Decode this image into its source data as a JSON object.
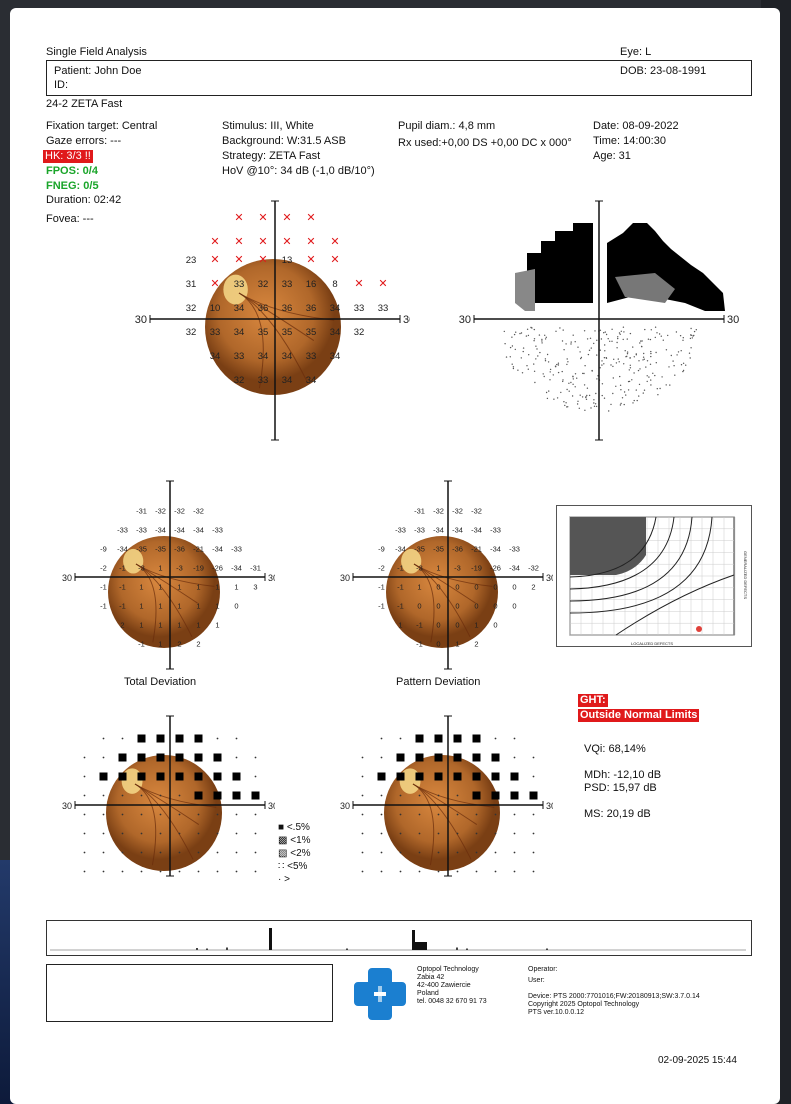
{
  "header": {
    "title": "Single Field Analysis",
    "eye": "Eye: L",
    "patient": "Patient: John Doe",
    "id": "ID:",
    "dob": "DOB: 23-08-1991",
    "test": "24-2 ZETA Fast"
  },
  "info": {
    "fixation": "Fixation target: Central",
    "gaze": "Gaze errors: ---",
    "hk": "HK: 3/3 !!",
    "fpos": "FPOS: 0/4",
    "fneg": "FNEG: 0/5",
    "duration": "Duration: 02:42",
    "fovea": "Fovea: ---",
    "stimulus": "Stimulus: III, White",
    "background": "Background: W:31.5 ASB",
    "strategy": "Strategy: ZETA Fast",
    "hov": "HoV @10°: 34 dB (-1,0 dB/10°)",
    "pupil": "Pupil diam.: 4,8 mm",
    "rx": "Rx used:+0,00 DS +0,00 DC x 000°",
    "date": "Date: 08-09-2022",
    "time": "Time: 14:00:30",
    "age": "Age: 31"
  },
  "axis": {
    "left": "30",
    "right": "30"
  },
  "sensitivity": {
    "rows": [
      {
        "y": -3,
        "cells": [
          [
            -4,
            "23"
          ],
          [
            -3,
            "x"
          ],
          [
            -2,
            "x"
          ],
          [
            -1,
            "x"
          ],
          [
            1,
            "13"
          ],
          [
            2,
            "x"
          ],
          [
            3,
            "x"
          ]
        ]
      },
      {
        "y": -2,
        "cells": [
          [
            -4,
            "31"
          ],
          [
            -3,
            "x"
          ],
          [
            -2,
            "33"
          ],
          [
            -1,
            "32"
          ],
          [
            1,
            "33"
          ],
          [
            2,
            "16"
          ],
          [
            3,
            "8"
          ],
          [
            4,
            "x"
          ],
          [
            5,
            "x"
          ]
        ]
      },
      {
        "y": -1,
        "cells": [
          [
            -4,
            "32"
          ],
          [
            -3,
            "10"
          ],
          [
            -2,
            "34"
          ],
          [
            -1,
            "36"
          ],
          [
            1,
            "36"
          ],
          [
            2,
            "36"
          ],
          [
            3,
            "34"
          ],
          [
            4,
            "33"
          ],
          [
            5,
            "33"
          ]
        ]
      },
      {
        "y": 0,
        "cells": [
          [
            -4,
            "32"
          ],
          [
            -3,
            "33"
          ],
          [
            -2,
            "34"
          ],
          [
            -1,
            "35"
          ],
          [
            1,
            "35"
          ],
          [
            2,
            "35"
          ],
          [
            3,
            "34"
          ],
          [
            4,
            "32"
          ]
        ]
      },
      {
        "y": 1,
        "cells": [
          [
            -3,
            "34"
          ],
          [
            -2,
            "33"
          ],
          [
            -1,
            "34"
          ],
          [
            1,
            "34"
          ],
          [
            2,
            "33"
          ],
          [
            3,
            "34"
          ]
        ]
      },
      {
        "y": 2,
        "cells": [
          [
            -2,
            "32"
          ],
          [
            -1,
            "33"
          ],
          [
            1,
            "34"
          ],
          [
            2,
            "34"
          ]
        ]
      }
    ],
    "top_marks": [
      [
        -2,
        -5
      ],
      [
        -1,
        -5
      ],
      [
        1,
        -5
      ],
      [
        2,
        -5
      ],
      [
        -3,
        -4
      ],
      [
        -2,
        -4
      ],
      [
        -1,
        -4
      ],
      [
        1,
        -4
      ],
      [
        2,
        -4
      ],
      [
        3,
        -4
      ]
    ]
  },
  "total_deviation": {
    "label": "Total Deviation",
    "rows": [
      {
        "y": -4,
        "cells": [
          [
            -2,
            "-31"
          ],
          [
            -1,
            "-32"
          ],
          [
            1,
            "-32"
          ],
          [
            2,
            "-32"
          ]
        ]
      },
      {
        "y": -3,
        "cells": [
          [
            -3,
            "-33"
          ],
          [
            -2,
            "-33"
          ],
          [
            -1,
            "-34"
          ],
          [
            1,
            "-34"
          ],
          [
            2,
            "-34"
          ],
          [
            3,
            "-33"
          ]
        ]
      },
      {
        "y": -2,
        "cells": [
          [
            -4,
            "-9"
          ],
          [
            -3,
            "-34"
          ],
          [
            -2,
            "-35"
          ],
          [
            -1,
            "-35"
          ],
          [
            1,
            "-36"
          ],
          [
            2,
            "-21"
          ],
          [
            3,
            "-34"
          ],
          [
            4,
            "-33"
          ]
        ]
      },
      {
        "y": -1,
        "cells": [
          [
            -4,
            "-2"
          ],
          [
            -3,
            "-1"
          ],
          [
            -2,
            "-3"
          ],
          [
            -1,
            "1"
          ],
          [
            1,
            "-3"
          ],
          [
            2,
            "-19"
          ],
          [
            3,
            "-26"
          ],
          [
            4,
            "-34"
          ],
          [
            5,
            "-31"
          ]
        ]
      },
      {
        "y": 0,
        "cells": [
          [
            -4,
            "-1"
          ],
          [
            -3,
            "-1"
          ],
          [
            -2,
            "1"
          ],
          [
            -1,
            "1"
          ],
          [
            1,
            "1"
          ],
          [
            2,
            "1"
          ],
          [
            3,
            "1"
          ],
          [
            4,
            "1"
          ],
          [
            5,
            "3"
          ]
        ]
      },
      {
        "y": 1,
        "cells": [
          [
            -4,
            "-1"
          ],
          [
            -3,
            "-1"
          ],
          [
            -2,
            "1"
          ],
          [
            -1,
            "1"
          ],
          [
            1,
            "1"
          ],
          [
            2,
            "1"
          ],
          [
            3,
            "1"
          ],
          [
            4,
            "0"
          ]
        ]
      },
      {
        "y": 2,
        "cells": [
          [
            -3,
            "2"
          ],
          [
            -2,
            "1"
          ],
          [
            -1,
            "1"
          ],
          [
            1,
            "1"
          ],
          [
            2,
            "1"
          ],
          [
            3,
            "1"
          ]
        ]
      },
      {
        "y": 3,
        "cells": [
          [
            -2,
            "-1"
          ],
          [
            -1,
            "1"
          ],
          [
            1,
            "2"
          ],
          [
            2,
            "2"
          ]
        ]
      }
    ]
  },
  "pattern_deviation": {
    "label": "Pattern Deviation",
    "rows": [
      {
        "y": -4,
        "cells": [
          [
            -2,
            "-31"
          ],
          [
            -1,
            "-32"
          ],
          [
            1,
            "-32"
          ],
          [
            2,
            "-32"
          ]
        ]
      },
      {
        "y": -3,
        "cells": [
          [
            -3,
            "-33"
          ],
          [
            -2,
            "-33"
          ],
          [
            -1,
            "-34"
          ],
          [
            1,
            "-34"
          ],
          [
            2,
            "-34"
          ],
          [
            3,
            "-33"
          ]
        ]
      },
      {
        "y": -2,
        "cells": [
          [
            -4,
            "-9"
          ],
          [
            -3,
            "-34"
          ],
          [
            -2,
            "-35"
          ],
          [
            -1,
            "-35"
          ],
          [
            1,
            "-36"
          ],
          [
            2,
            "-21"
          ],
          [
            3,
            "-34"
          ],
          [
            4,
            "-33"
          ]
        ]
      },
      {
        "y": -1,
        "cells": [
          [
            -4,
            "-2"
          ],
          [
            -3,
            "-1"
          ],
          [
            -2,
            "-3"
          ],
          [
            -1,
            "1"
          ],
          [
            1,
            "-3"
          ],
          [
            2,
            "-19"
          ],
          [
            3,
            "-26"
          ],
          [
            4,
            "-34"
          ],
          [
            5,
            "-32"
          ]
        ]
      },
      {
        "y": 0,
        "cells": [
          [
            -4,
            "-1"
          ],
          [
            -3,
            "-1"
          ],
          [
            -2,
            "1"
          ],
          [
            -1,
            "0"
          ],
          [
            1,
            "0"
          ],
          [
            2,
            "0"
          ],
          [
            3,
            "0"
          ],
          [
            4,
            "0"
          ],
          [
            5,
            "2"
          ]
        ]
      },
      {
        "y": 1,
        "cells": [
          [
            -4,
            "-1"
          ],
          [
            -3,
            "-1"
          ],
          [
            -2,
            "0"
          ],
          [
            -1,
            "0"
          ],
          [
            1,
            "0"
          ],
          [
            2,
            "0"
          ],
          [
            3,
            "0"
          ],
          [
            4,
            "0"
          ]
        ]
      },
      {
        "y": 2,
        "cells": [
          [
            -3,
            "1"
          ],
          [
            -2,
            "-1"
          ],
          [
            -1,
            "0"
          ],
          [
            1,
            "0"
          ],
          [
            2,
            "1"
          ],
          [
            3,
            "0"
          ]
        ]
      },
      {
        "y": 3,
        "cells": [
          [
            -2,
            "-1"
          ],
          [
            -1,
            "0"
          ],
          [
            1,
            "1"
          ],
          [
            2,
            "2"
          ]
        ]
      }
    ]
  },
  "prob_squares": {
    "filled": [
      [
        -2,
        -4
      ],
      [
        -1,
        -4
      ],
      [
        1,
        -4
      ],
      [
        2,
        -4
      ],
      [
        -3,
        -3
      ],
      [
        -2,
        -3
      ],
      [
        -1,
        -3
      ],
      [
        1,
        -3
      ],
      [
        2,
        -3
      ],
      [
        3,
        -3
      ],
      [
        -4,
        -2
      ],
      [
        -3,
        -2
      ],
      [
        -2,
        -2
      ],
      [
        -1,
        -2
      ],
      [
        1,
        -2
      ],
      [
        2,
        -2
      ],
      [
        3,
        -2
      ],
      [
        4,
        -2
      ],
      [
        2,
        -1
      ],
      [
        3,
        -1
      ],
      [
        4,
        -1
      ],
      [
        5,
        -1
      ]
    ]
  },
  "legend": [
    {
      "sym": "■",
      "label": "<.5%"
    },
    {
      "sym": "▩",
      "label": "<1%"
    },
    {
      "sym": "▧",
      "label": "<2%"
    },
    {
      "sym": "∷",
      "label": "<5%"
    },
    {
      "sym": "·",
      "label": ">"
    }
  ],
  "results": {
    "ght_label": "GHT:",
    "ght_value": "Outside Normal Limits",
    "vqi": "VQi: 68,14%",
    "mdh": "MDh: -12,10 dB",
    "psd": "PSD: 15,97 dB",
    "ms": "MS: 20,19 dB"
  },
  "bebie": {
    "xlabel": "LOCALIZED DEFECTS",
    "ylabel": "GENERALIZED DEFECTS"
  },
  "footer": {
    "company": [
      "Optopol Technology",
      "Zabia 42",
      "42-400 Zawiercie",
      "Poland",
      "tel. 0048 32 670 91 73"
    ],
    "operator": "Operator:",
    "user": "User:",
    "device": "Device: PTS 2000:7701016;FW:20180913;SW:3.7.0.14",
    "copyright": "Copyright 2025 Optopol Technology",
    "ver": "PTS ver.10.0.0.12",
    "printed": "02-09-2025 15:44"
  },
  "colors": {
    "alert": "#e0191b",
    "ok": "#1aa52a",
    "fundus": "#b0672a",
    "logo": "#1b7fd0"
  }
}
